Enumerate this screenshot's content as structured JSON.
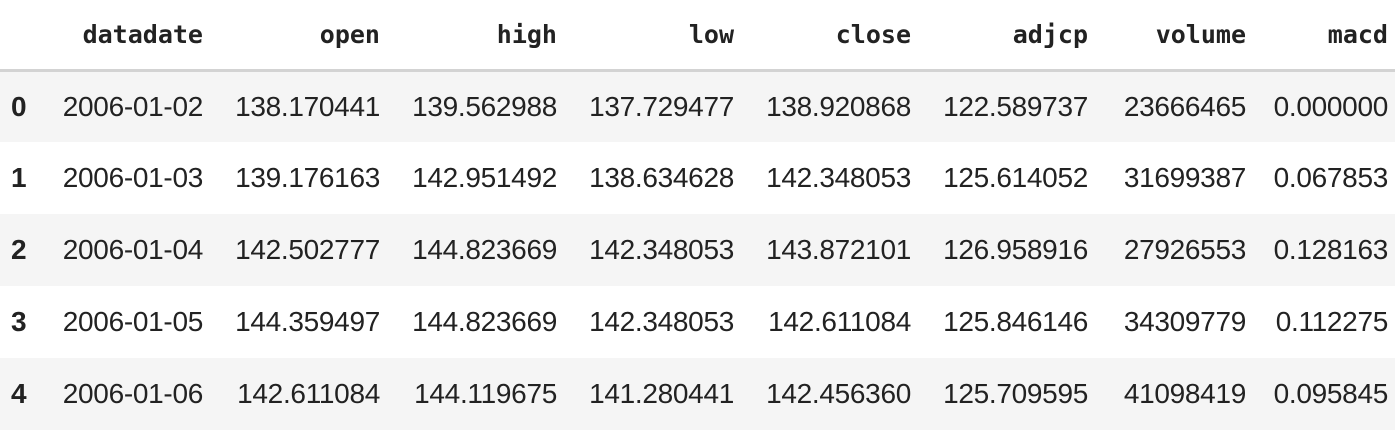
{
  "table": {
    "index_header": "",
    "columns": [
      "datadate",
      "open",
      "high",
      "low",
      "close",
      "adjcp",
      "volume",
      "macd"
    ],
    "rows": [
      {
        "index": "0",
        "cells": [
          "2006-01-02",
          "138.170441",
          "139.562988",
          "137.729477",
          "138.920868",
          "122.589737",
          "23666465",
          "0.000000"
        ]
      },
      {
        "index": "1",
        "cells": [
          "2006-01-03",
          "139.176163",
          "142.951492",
          "138.634628",
          "142.348053",
          "125.614052",
          "31699387",
          "0.067853"
        ]
      },
      {
        "index": "2",
        "cells": [
          "2006-01-04",
          "142.502777",
          "144.823669",
          "142.348053",
          "143.872101",
          "126.958916",
          "27926553",
          "0.128163"
        ]
      },
      {
        "index": "3",
        "cells": [
          "2006-01-05",
          "144.359497",
          "144.823669",
          "142.348053",
          "142.611084",
          "125.846146",
          "34309779",
          "0.112275"
        ]
      },
      {
        "index": "4",
        "cells": [
          "2006-01-06",
          "142.611084",
          "144.119675",
          "141.280441",
          "142.456360",
          "125.709595",
          "41098419",
          "0.095845"
        ]
      }
    ]
  }
}
